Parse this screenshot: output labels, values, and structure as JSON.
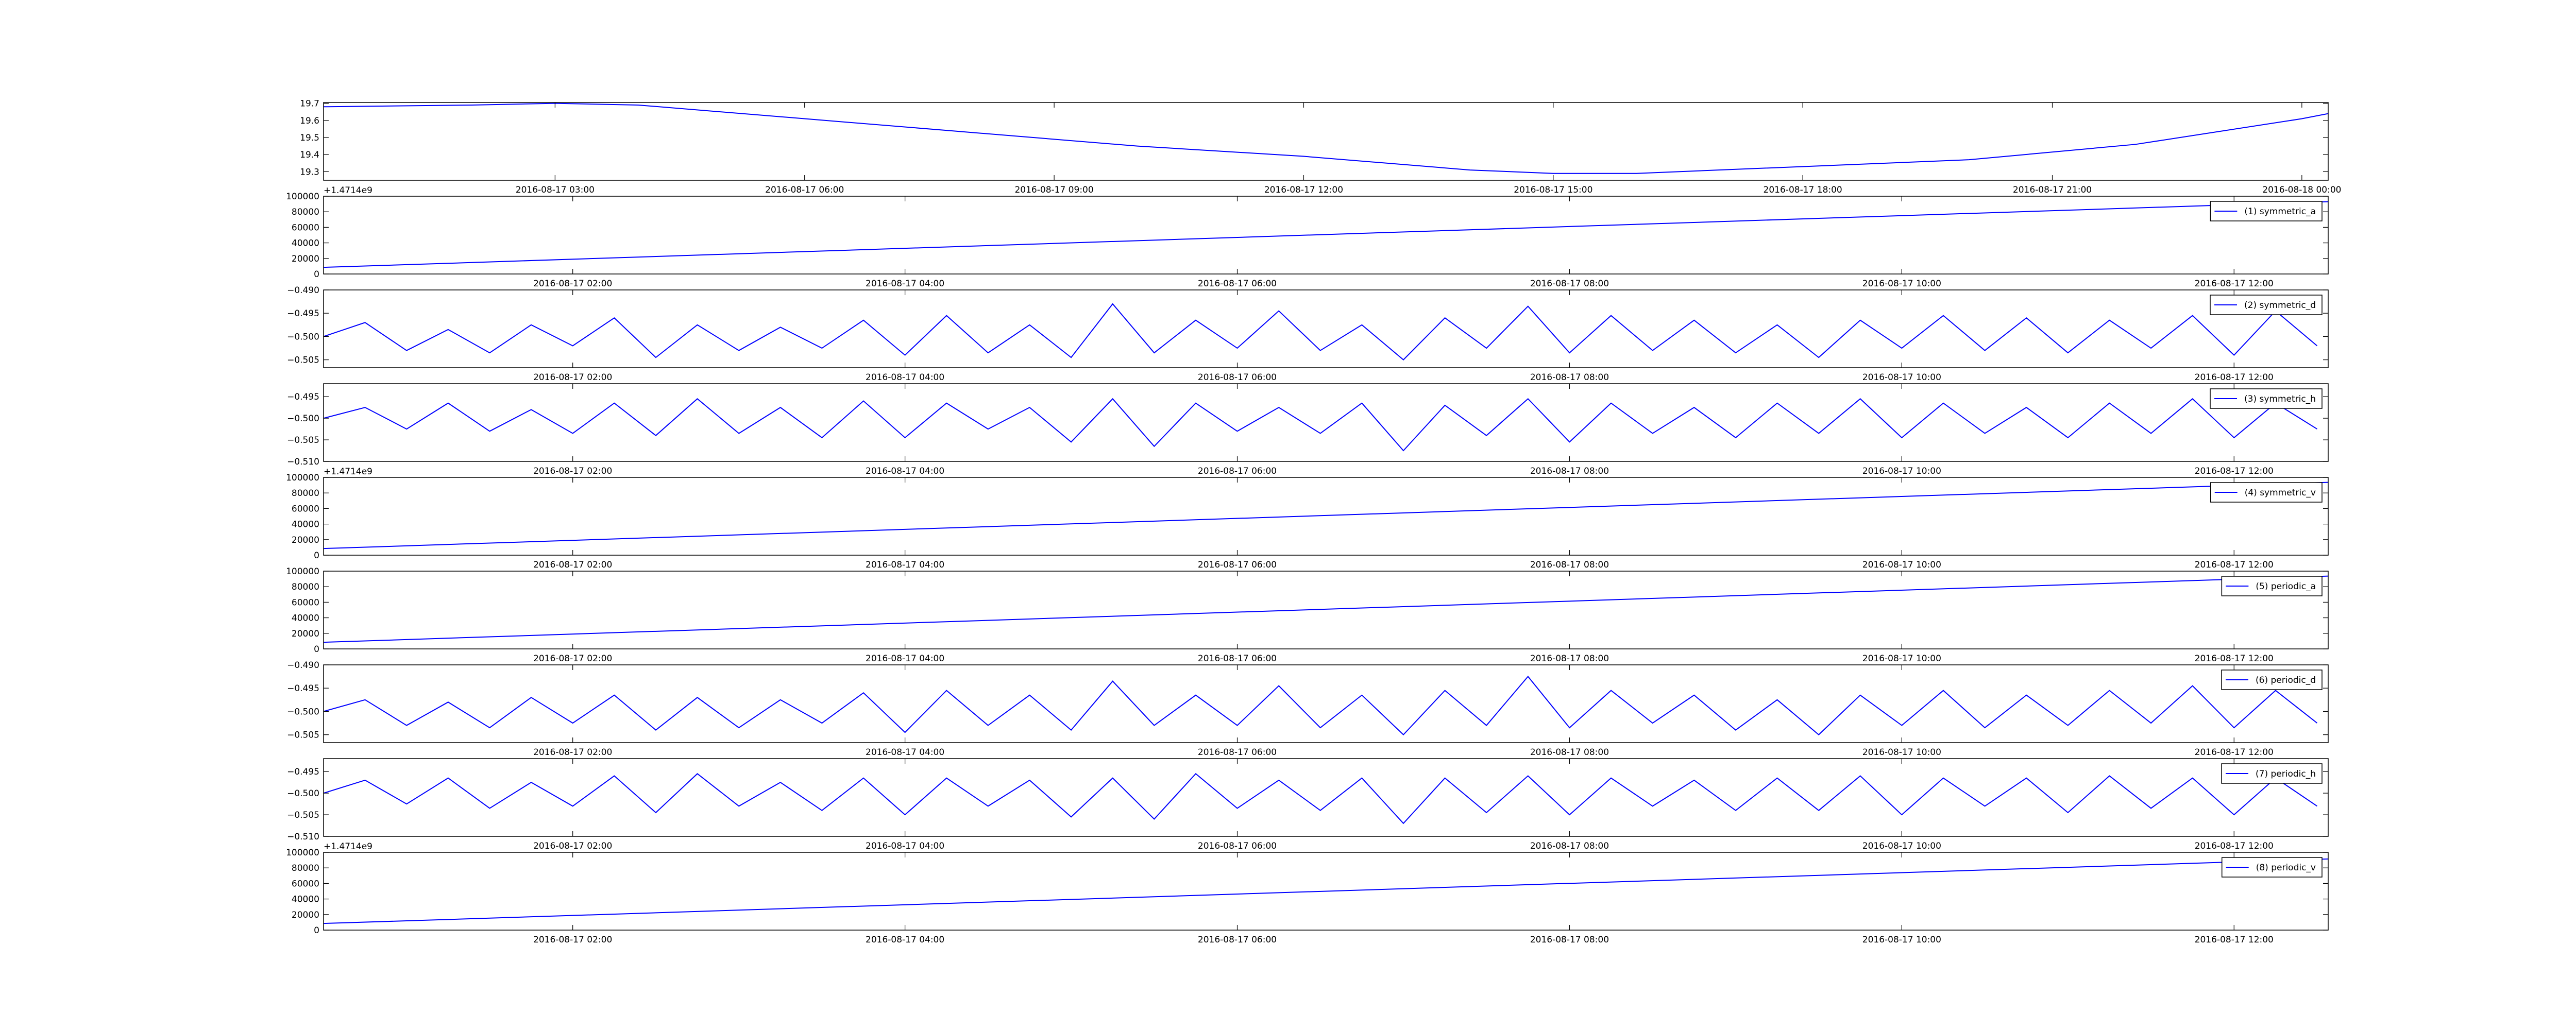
{
  "chart_data": [
    {
      "type": "line",
      "x": [
        "2016-08-17 00:13",
        "2016-08-17 02:00",
        "2016-08-17 03:00",
        "2016-08-17 04:00",
        "2016-08-17 06:00",
        "2016-08-17 08:00",
        "2016-08-17 10:00",
        "2016-08-17 12:00",
        "2016-08-17 14:00",
        "2016-08-17 15:00",
        "2016-08-17 16:00",
        "2016-08-17 18:00",
        "2016-08-17 20:00",
        "2016-08-17 22:00",
        "2016-08-18 00:00",
        "2016-08-18 00:19"
      ],
      "series": [
        {
          "color": "#0000ff",
          "values": [
            19.68,
            19.69,
            19.7,
            19.69,
            19.61,
            19.53,
            19.45,
            19.39,
            19.31,
            19.29,
            19.29,
            19.33,
            19.37,
            19.46,
            19.61,
            19.64
          ]
        }
      ],
      "xlim": [
        "2016-08-17 00:13",
        "2016-08-18 00:19"
      ],
      "xticks": [
        "2016-08-17 03:00",
        "2016-08-17 06:00",
        "2016-08-17 09:00",
        "2016-08-17 12:00",
        "2016-08-17 15:00",
        "2016-08-17 18:00",
        "2016-08-17 21:00",
        "2016-08-18 00:00"
      ],
      "ylim": [
        19.25,
        19.705
      ],
      "yticks": [
        19.3,
        19.4,
        19.5,
        19.6,
        19.7
      ]
    },
    {
      "type": "line",
      "x": [
        "2016-08-17 00:30",
        "2016-08-17 12:34"
      ],
      "series": [
        {
          "name": "(1) symmetric_a",
          "color": "#0000ff",
          "values": [
            8500,
            93000
          ]
        }
      ],
      "xlim": [
        "2016-08-17 00:30",
        "2016-08-17 12:34"
      ],
      "xticks": [
        "2016-08-17 02:00",
        "2016-08-17 04:00",
        "2016-08-17 06:00",
        "2016-08-17 08:00",
        "2016-08-17 10:00",
        "2016-08-17 12:00"
      ],
      "ylim": [
        0,
        100000
      ],
      "yticks": [
        0,
        20000,
        40000,
        60000,
        80000,
        100000
      ],
      "y_offset_label": "+1.4714e9",
      "legend": "upper right"
    },
    {
      "type": "line",
      "x": [
        "2016-08-17 00:30",
        "2016-08-17 00:45",
        "2016-08-17 01:00",
        "2016-08-17 01:15",
        "2016-08-17 01:30",
        "2016-08-17 01:45",
        "2016-08-17 02:00",
        "2016-08-17 02:15",
        "2016-08-17 02:30",
        "2016-08-17 02:45",
        "2016-08-17 03:00",
        "2016-08-17 03:15",
        "2016-08-17 03:30",
        "2016-08-17 03:45",
        "2016-08-17 04:00",
        "2016-08-17 04:15",
        "2016-08-17 04:30",
        "2016-08-17 04:45",
        "2016-08-17 05:00",
        "2016-08-17 05:15",
        "2016-08-17 05:30",
        "2016-08-17 05:45",
        "2016-08-17 06:00",
        "2016-08-17 06:15",
        "2016-08-17 06:30",
        "2016-08-17 06:45",
        "2016-08-17 07:00",
        "2016-08-17 07:15",
        "2016-08-17 07:30",
        "2016-08-17 07:45",
        "2016-08-17 08:00",
        "2016-08-17 08:15",
        "2016-08-17 08:30",
        "2016-08-17 08:45",
        "2016-08-17 09:00",
        "2016-08-17 09:15",
        "2016-08-17 09:30",
        "2016-08-17 09:45",
        "2016-08-17 10:00",
        "2016-08-17 10:15",
        "2016-08-17 10:30",
        "2016-08-17 10:45",
        "2016-08-17 11:00",
        "2016-08-17 11:15",
        "2016-08-17 11:30",
        "2016-08-17 11:45",
        "2016-08-17 12:00",
        "2016-08-17 12:15",
        "2016-08-17 12:30"
      ],
      "series": [
        {
          "name": "(2) symmetric_d",
          "color": "#0000ff",
          "values": [
            -0.5,
            -0.497,
            -0.503,
            -0.4985,
            -0.5035,
            -0.4975,
            -0.502,
            -0.496,
            -0.5045,
            -0.4975,
            -0.503,
            -0.498,
            -0.5025,
            -0.4965,
            -0.504,
            -0.4955,
            -0.5035,
            -0.4975,
            -0.5045,
            -0.493,
            -0.5035,
            -0.4965,
            -0.5025,
            -0.4945,
            -0.503,
            -0.4975,
            -0.505,
            -0.496,
            -0.5025,
            -0.4935,
            -0.5035,
            -0.4955,
            -0.503,
            -0.4965,
            -0.5035,
            -0.4975,
            -0.5045,
            -0.4965,
            -0.5025,
            -0.4955,
            -0.503,
            -0.496,
            -0.5035,
            -0.4965,
            -0.5025,
            -0.4955,
            -0.504,
            -0.4945,
            -0.502
          ]
        }
      ],
      "xlim": [
        "2016-08-17 00:30",
        "2016-08-17 12:34"
      ],
      "xticks": [
        "2016-08-17 02:00",
        "2016-08-17 04:00",
        "2016-08-17 06:00",
        "2016-08-17 08:00",
        "2016-08-17 10:00",
        "2016-08-17 12:00"
      ],
      "ylim": [
        -0.5067,
        -0.49
      ],
      "yticks": [
        {
          "value": -0.49,
          "label": "−0.490"
        },
        {
          "value": -0.495,
          "label": "−0.495"
        },
        {
          "value": -0.5,
          "label": "−0.500"
        },
        {
          "value": -0.505,
          "label": "−0.505"
        }
      ],
      "legend": "upper right"
    },
    {
      "type": "line",
      "x": [
        "2016-08-17 00:30",
        "2016-08-17 00:45",
        "2016-08-17 01:00",
        "2016-08-17 01:15",
        "2016-08-17 01:30",
        "2016-08-17 01:45",
        "2016-08-17 02:00",
        "2016-08-17 02:15",
        "2016-08-17 02:30",
        "2016-08-17 02:45",
        "2016-08-17 03:00",
        "2016-08-17 03:15",
        "2016-08-17 03:30",
        "2016-08-17 03:45",
        "2016-08-17 04:00",
        "2016-08-17 04:15",
        "2016-08-17 04:30",
        "2016-08-17 04:45",
        "2016-08-17 05:00",
        "2016-08-17 05:15",
        "2016-08-17 05:30",
        "2016-08-17 05:45",
        "2016-08-17 06:00",
        "2016-08-17 06:15",
        "2016-08-17 06:30",
        "2016-08-17 06:45",
        "2016-08-17 07:00",
        "2016-08-17 07:15",
        "2016-08-17 07:30",
        "2016-08-17 07:45",
        "2016-08-17 08:00",
        "2016-08-17 08:15",
        "2016-08-17 08:30",
        "2016-08-17 08:45",
        "2016-08-17 09:00",
        "2016-08-17 09:15",
        "2016-08-17 09:30",
        "2016-08-17 09:45",
        "2016-08-17 10:00",
        "2016-08-17 10:15",
        "2016-08-17 10:30",
        "2016-08-17 10:45",
        "2016-08-17 11:00",
        "2016-08-17 11:15",
        "2016-08-17 11:30",
        "2016-08-17 11:45",
        "2016-08-17 12:00",
        "2016-08-17 12:15",
        "2016-08-17 12:30"
      ],
      "series": [
        {
          "name": "(3) symmetric_h",
          "color": "#0000ff",
          "values": [
            -0.5,
            -0.4975,
            -0.5025,
            -0.4965,
            -0.503,
            -0.498,
            -0.5035,
            -0.4965,
            -0.504,
            -0.4955,
            -0.5035,
            -0.4975,
            -0.5045,
            -0.496,
            -0.5045,
            -0.4965,
            -0.5025,
            -0.4975,
            -0.5055,
            -0.4955,
            -0.5065,
            -0.4965,
            -0.503,
            -0.4975,
            -0.5035,
            -0.4965,
            -0.5075,
            -0.497,
            -0.504,
            -0.4955,
            -0.5055,
            -0.4965,
            -0.5035,
            -0.4975,
            -0.5045,
            -0.4965,
            -0.5035,
            -0.4955,
            -0.5045,
            -0.4965,
            -0.5035,
            -0.4975,
            -0.5045,
            -0.4965,
            -0.5035,
            -0.4955,
            -0.5045,
            -0.4965,
            -0.5025
          ]
        }
      ],
      "xlim": [
        "2016-08-17 00:30",
        "2016-08-17 12:34"
      ],
      "xticks": [
        "2016-08-17 02:00",
        "2016-08-17 04:00",
        "2016-08-17 06:00",
        "2016-08-17 08:00",
        "2016-08-17 10:00",
        "2016-08-17 12:00"
      ],
      "ylim": [
        -0.51,
        -0.492
      ],
      "yticks": [
        {
          "value": -0.495,
          "label": "−0.495"
        },
        {
          "value": -0.5,
          "label": "−0.500"
        },
        {
          "value": -0.505,
          "label": "−0.505"
        },
        {
          "value": -0.51,
          "label": "−0.510"
        }
      ],
      "legend": "upper right"
    },
    {
      "type": "line",
      "x": [
        "2016-08-17 00:30",
        "2016-08-17 12:34"
      ],
      "series": [
        {
          "name": "(4) symmetric_v",
          "color": "#0000ff",
          "values": [
            8500,
            93600
          ]
        }
      ],
      "xlim": [
        "2016-08-17 00:30",
        "2016-08-17 12:34"
      ],
      "xticks": [
        "2016-08-17 02:00",
        "2016-08-17 04:00",
        "2016-08-17 06:00",
        "2016-08-17 08:00",
        "2016-08-17 10:00",
        "2016-08-17 12:00"
      ],
      "ylim": [
        0,
        100000
      ],
      "yticks": [
        0,
        20000,
        40000,
        60000,
        80000,
        100000
      ],
      "y_offset_label": "+1.4714e9",
      "legend": "upper right"
    },
    {
      "type": "line",
      "x": [
        "2016-08-17 00:30",
        "2016-08-17 12:34"
      ],
      "series": [
        {
          "name": "(5) periodic_a",
          "color": "#0000ff",
          "values": [
            8500,
            93600
          ]
        }
      ],
      "xlim": [
        "2016-08-17 00:30",
        "2016-08-17 12:34"
      ],
      "xticks": [
        "2016-08-17 02:00",
        "2016-08-17 04:00",
        "2016-08-17 06:00",
        "2016-08-17 08:00",
        "2016-08-17 10:00",
        "2016-08-17 12:00"
      ],
      "ylim": [
        0,
        100000
      ],
      "yticks": [
        0,
        20000,
        40000,
        60000,
        80000,
        100000
      ],
      "legend": "upper right"
    },
    {
      "type": "line",
      "x": [
        "2016-08-17 00:30",
        "2016-08-17 00:45",
        "2016-08-17 01:00",
        "2016-08-17 01:15",
        "2016-08-17 01:30",
        "2016-08-17 01:45",
        "2016-08-17 02:00",
        "2016-08-17 02:15",
        "2016-08-17 02:30",
        "2016-08-17 02:45",
        "2016-08-17 03:00",
        "2016-08-17 03:15",
        "2016-08-17 03:30",
        "2016-08-17 03:45",
        "2016-08-17 04:00",
        "2016-08-17 04:15",
        "2016-08-17 04:30",
        "2016-08-17 04:45",
        "2016-08-17 05:00",
        "2016-08-17 05:15",
        "2016-08-17 05:30",
        "2016-08-17 05:45",
        "2016-08-17 06:00",
        "2016-08-17 06:15",
        "2016-08-17 06:30",
        "2016-08-17 06:45",
        "2016-08-17 07:00",
        "2016-08-17 07:15",
        "2016-08-17 07:30",
        "2016-08-17 07:45",
        "2016-08-17 08:00",
        "2016-08-17 08:15",
        "2016-08-17 08:30",
        "2016-08-17 08:45",
        "2016-08-17 09:00",
        "2016-08-17 09:15",
        "2016-08-17 09:30",
        "2016-08-17 09:45",
        "2016-08-17 10:00",
        "2016-08-17 10:15",
        "2016-08-17 10:30",
        "2016-08-17 10:45",
        "2016-08-17 11:00",
        "2016-08-17 11:15",
        "2016-08-17 11:30",
        "2016-08-17 11:45",
        "2016-08-17 12:00",
        "2016-08-17 12:15",
        "2016-08-17 12:30"
      ],
      "series": [
        {
          "name": "(6) periodic_d",
          "color": "#0000ff",
          "values": [
            -0.5,
            -0.4975,
            -0.503,
            -0.498,
            -0.5035,
            -0.497,
            -0.5025,
            -0.4965,
            -0.504,
            -0.497,
            -0.5035,
            -0.4975,
            -0.5025,
            -0.496,
            -0.5045,
            -0.4955,
            -0.503,
            -0.4965,
            -0.504,
            -0.4935,
            -0.503,
            -0.4965,
            -0.503,
            -0.4945,
            -0.5035,
            -0.4965,
            -0.505,
            -0.4955,
            -0.503,
            -0.4925,
            -0.5035,
            -0.4955,
            -0.5025,
            -0.4965,
            -0.504,
            -0.4975,
            -0.505,
            -0.4965,
            -0.503,
            -0.4955,
            -0.5035,
            -0.4965,
            -0.503,
            -0.4955,
            -0.5025,
            -0.4945,
            -0.5035,
            -0.4955,
            -0.5025
          ]
        }
      ],
      "xlim": [
        "2016-08-17 00:30",
        "2016-08-17 12:34"
      ],
      "xticks": [
        "2016-08-17 02:00",
        "2016-08-17 04:00",
        "2016-08-17 06:00",
        "2016-08-17 08:00",
        "2016-08-17 10:00",
        "2016-08-17 12:00"
      ],
      "ylim": [
        -0.5067,
        -0.49
      ],
      "yticks": [
        {
          "value": -0.49,
          "label": "−0.490"
        },
        {
          "value": -0.495,
          "label": "−0.495"
        },
        {
          "value": -0.5,
          "label": "−0.500"
        },
        {
          "value": -0.505,
          "label": "−0.505"
        }
      ],
      "legend": "upper right"
    },
    {
      "type": "line",
      "x": [
        "2016-08-17 00:30",
        "2016-08-17 00:45",
        "2016-08-17 01:00",
        "2016-08-17 01:15",
        "2016-08-17 01:30",
        "2016-08-17 01:45",
        "2016-08-17 02:00",
        "2016-08-17 02:15",
        "2016-08-17 02:30",
        "2016-08-17 02:45",
        "2016-08-17 03:00",
        "2016-08-17 03:15",
        "2016-08-17 03:30",
        "2016-08-17 03:45",
        "2016-08-17 04:00",
        "2016-08-17 04:15",
        "2016-08-17 04:30",
        "2016-08-17 04:45",
        "2016-08-17 05:00",
        "2016-08-17 05:15",
        "2016-08-17 05:30",
        "2016-08-17 05:45",
        "2016-08-17 06:00",
        "2016-08-17 06:15",
        "2016-08-17 06:30",
        "2016-08-17 06:45",
        "2016-08-17 07:00",
        "2016-08-17 07:15",
        "2016-08-17 07:30",
        "2016-08-17 07:45",
        "2016-08-17 08:00",
        "2016-08-17 08:15",
        "2016-08-17 08:30",
        "2016-08-17 08:45",
        "2016-08-17 09:00",
        "2016-08-17 09:15",
        "2016-08-17 09:30",
        "2016-08-17 09:45",
        "2016-08-17 10:00",
        "2016-08-17 10:15",
        "2016-08-17 10:30",
        "2016-08-17 10:45",
        "2016-08-17 11:00",
        "2016-08-17 11:15",
        "2016-08-17 11:30",
        "2016-08-17 11:45",
        "2016-08-17 12:00",
        "2016-08-17 12:15",
        "2016-08-17 12:30"
      ],
      "series": [
        {
          "name": "(7) periodic_h",
          "color": "#0000ff",
          "values": [
            -0.5,
            -0.497,
            -0.5025,
            -0.4965,
            -0.5035,
            -0.4975,
            -0.503,
            -0.496,
            -0.5045,
            -0.4955,
            -0.503,
            -0.4975,
            -0.504,
            -0.4965,
            -0.505,
            -0.4965,
            -0.503,
            -0.497,
            -0.5055,
            -0.4965,
            -0.506,
            -0.4955,
            -0.5035,
            -0.497,
            -0.504,
            -0.4965,
            -0.507,
            -0.4965,
            -0.5045,
            -0.496,
            -0.505,
            -0.4965,
            -0.503,
            -0.497,
            -0.504,
            -0.4965,
            -0.504,
            -0.496,
            -0.505,
            -0.4965,
            -0.503,
            -0.4965,
            -0.5045,
            -0.496,
            -0.5035,
            -0.4965,
            -0.505,
            -0.4965,
            -0.503
          ]
        }
      ],
      "xlim": [
        "2016-08-17 00:30",
        "2016-08-17 12:34"
      ],
      "xticks": [
        "2016-08-17 02:00",
        "2016-08-17 04:00",
        "2016-08-17 06:00",
        "2016-08-17 08:00",
        "2016-08-17 10:00",
        "2016-08-17 12:00"
      ],
      "ylim": [
        -0.51,
        -0.492
      ],
      "yticks": [
        {
          "value": -0.495,
          "label": "−0.495"
        },
        {
          "value": -0.5,
          "label": "−0.500"
        },
        {
          "value": -0.505,
          "label": "−0.505"
        },
        {
          "value": -0.51,
          "label": "−0.510"
        }
      ],
      "legend": "upper right"
    },
    {
      "type": "line",
      "x": [
        "2016-08-17 00:30",
        "2016-08-17 12:34"
      ],
      "series": [
        {
          "name": "(8) periodic_v",
          "color": "#0000ff",
          "values": [
            8500,
            91500
          ]
        }
      ],
      "xlim": [
        "2016-08-17 00:30",
        "2016-08-17 12:34"
      ],
      "xticks": [
        "2016-08-17 02:00",
        "2016-08-17 04:00",
        "2016-08-17 06:00",
        "2016-08-17 08:00",
        "2016-08-17 10:00",
        "2016-08-17 12:00"
      ],
      "ylim": [
        0,
        100000
      ],
      "yticks": [
        0,
        20000,
        40000,
        60000,
        80000,
        100000
      ],
      "y_offset_label": "+1.4714e9",
      "legend": "upper right"
    }
  ]
}
